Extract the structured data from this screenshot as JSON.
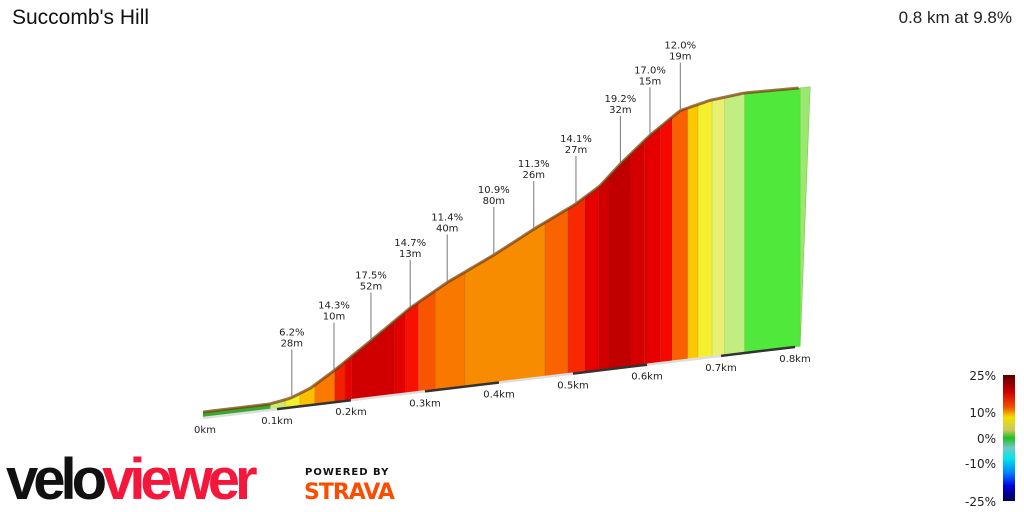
{
  "header": {
    "title": "Succomb's Hill",
    "summary": "0.8 km at 9.8%"
  },
  "branding": {
    "logo_part1": "velo",
    "logo_part2": "viewer",
    "powered_by": "POWERED BY",
    "strava": "STRAVA",
    "logo_color": "#f5163b",
    "strava_color": "#fc4c02"
  },
  "chart_data": {
    "type": "area",
    "title": "Succomb's Hill",
    "xlabel": "",
    "ylabel": "",
    "xlim": [
      0,
      0.8
    ],
    "x_ticks": [
      "0km",
      "0.1km",
      "0.2km",
      "0.3km",
      "0.4km",
      "0.5km",
      "0.6km",
      "0.7km",
      "0.8km"
    ],
    "profile": {
      "km": [
        0,
        0.09,
        0.118,
        0.145,
        0.178,
        0.228,
        0.28,
        0.331,
        0.393,
        0.449,
        0.503,
        0.536,
        0.564,
        0.604,
        0.645,
        0.685,
        0.732,
        0.807
      ],
      "elev_m": [
        0,
        0,
        1,
        3.3,
        7.9,
        15.7,
        24,
        30.5,
        37,
        43.6,
        49.4,
        54,
        60,
        67.6,
        74,
        76,
        77,
        76.5
      ]
    },
    "segments": [
      {
        "from": 0,
        "to": 0.091,
        "color": "#3aa830"
      },
      {
        "from": 0.091,
        "to": 0.111,
        "color": "#c8ec70"
      },
      {
        "from": 0.111,
        "to": 0.131,
        "color": "#f0f030"
      },
      {
        "from": 0.131,
        "to": 0.151,
        "color": "#fcc000"
      },
      {
        "from": 0.151,
        "to": 0.178,
        "color": "#fa7a00"
      },
      {
        "from": 0.178,
        "to": 0.192,
        "color": "#f02000"
      },
      {
        "from": 0.192,
        "to": 0.201,
        "color": "#e80000"
      },
      {
        "from": 0.201,
        "to": 0.259,
        "color": "#d00000"
      },
      {
        "from": 0.259,
        "to": 0.273,
        "color": "#e20000"
      },
      {
        "from": 0.273,
        "to": 0.291,
        "color": "#f81000"
      },
      {
        "from": 0.291,
        "to": 0.314,
        "color": "#f85500"
      },
      {
        "from": 0.314,
        "to": 0.354,
        "color": "#f87800"
      },
      {
        "from": 0.354,
        "to": 0.462,
        "color": "#f88c00"
      },
      {
        "from": 0.462,
        "to": 0.493,
        "color": "#f86400"
      },
      {
        "from": 0.493,
        "to": 0.516,
        "color": "#f82800"
      },
      {
        "from": 0.516,
        "to": 0.534,
        "color": "#e80000"
      },
      {
        "from": 0.534,
        "to": 0.55,
        "color": "#d00000"
      },
      {
        "from": 0.55,
        "to": 0.577,
        "color": "#c00000"
      },
      {
        "from": 0.577,
        "to": 0.597,
        "color": "#d40000"
      },
      {
        "from": 0.597,
        "to": 0.618,
        "color": "#e40000"
      },
      {
        "from": 0.618,
        "to": 0.634,
        "color": "#f40800"
      },
      {
        "from": 0.634,
        "to": 0.655,
        "color": "#fa6000"
      },
      {
        "from": 0.655,
        "to": 0.669,
        "color": "#fcc800"
      },
      {
        "from": 0.669,
        "to": 0.688,
        "color": "#f4f030"
      },
      {
        "from": 0.688,
        "to": 0.705,
        "color": "#e8f070"
      },
      {
        "from": 0.705,
        "to": 0.732,
        "color": "#c0ee80"
      },
      {
        "from": 0.732,
        "to": 0.807,
        "color": "#50e83a"
      }
    ],
    "annotations": [
      {
        "km": 0.12,
        "grade": "6.2%",
        "length": "28m"
      },
      {
        "km": 0.177,
        "grade": "14.3%",
        "length": "10m"
      },
      {
        "km": 0.227,
        "grade": "17.5%",
        "length": "52m"
      },
      {
        "km": 0.28,
        "grade": "14.7%",
        "length": "13m"
      },
      {
        "km": 0.33,
        "grade": "11.4%",
        "length": "40m"
      },
      {
        "km": 0.393,
        "grade": "10.9%",
        "length": "80m"
      },
      {
        "km": 0.447,
        "grade": "11.3%",
        "length": "26m"
      },
      {
        "km": 0.504,
        "grade": "14.1%",
        "length": "27m"
      },
      {
        "km": 0.564,
        "grade": "19.2%",
        "length": "32m"
      },
      {
        "km": 0.604,
        "grade": "17.0%",
        "length": "15m"
      },
      {
        "km": 0.645,
        "grade": "12.0%",
        "length": "19m"
      }
    ],
    "legend": {
      "labels": [
        "25%",
        "10%",
        "0%",
        "-10%",
        "-25%"
      ],
      "values": [
        25,
        10,
        0,
        -10,
        -25
      ],
      "stops": [
        {
          "v": 25,
          "color": "#5a0000"
        },
        {
          "v": 18,
          "color": "#d00000"
        },
        {
          "v": 12,
          "color": "#f05000"
        },
        {
          "v": 8,
          "color": "#f0e000"
        },
        {
          "v": 3,
          "color": "#c8c860"
        },
        {
          "v": 0,
          "color": "#20c020"
        },
        {
          "v": -4,
          "color": "#70c8c8"
        },
        {
          "v": -8,
          "color": "#00e8e8"
        },
        {
          "v": -14,
          "color": "#0080ff"
        },
        {
          "v": -19,
          "color": "#0000e0"
        },
        {
          "v": -25,
          "color": "#000050"
        }
      ]
    }
  }
}
